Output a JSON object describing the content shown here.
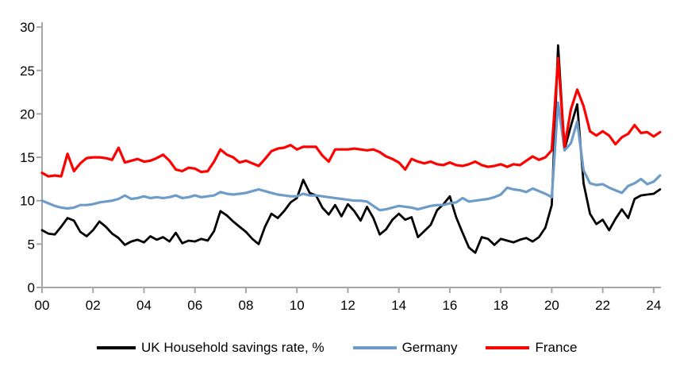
{
  "chart_data": {
    "type": "line",
    "title": "",
    "x_axis": {
      "start_year": 2000,
      "frequency": "quarterly",
      "last_point": "2024Q2"
    },
    "x_tick_labels": [
      "00",
      "02",
      "04",
      "06",
      "08",
      "10",
      "12",
      "14",
      "16",
      "18",
      "20",
      "22",
      "24"
    ],
    "y_ticks": [
      0,
      5,
      10,
      15,
      20,
      25,
      30
    ],
    "ylim": [
      0,
      30
    ],
    "grid": false,
    "legend_position": "bottom",
    "series": [
      {
        "name": "UK Household savings rate, %",
        "color": "#000000",
        "stroke_width": 2.8,
        "values": [
          6.6,
          6.2,
          6.1,
          7.0,
          8.0,
          7.7,
          6.4,
          5.9,
          6.6,
          7.6,
          7.0,
          6.2,
          5.7,
          4.9,
          5.3,
          5.5,
          5.2,
          5.9,
          5.5,
          5.8,
          5.3,
          6.3,
          5.1,
          5.4,
          5.3,
          5.6,
          5.4,
          6.5,
          8.8,
          8.3,
          7.6,
          7.0,
          6.4,
          5.6,
          5.0,
          7.0,
          8.5,
          8.0,
          8.8,
          9.8,
          10.3,
          12.4,
          10.9,
          10.6,
          9.2,
          8.4,
          9.5,
          8.2,
          9.6,
          8.8,
          7.7,
          9.3,
          8.0,
          6.1,
          6.7,
          7.8,
          8.5,
          7.8,
          8.1,
          5.8,
          6.5,
          7.2,
          8.9,
          9.6,
          10.5,
          8.1,
          6.3,
          4.6,
          4.0,
          5.8,
          5.6,
          4.9,
          5.6,
          5.4,
          5.2,
          5.5,
          5.7,
          5.3,
          5.8,
          6.9,
          9.5,
          27.9,
          15.9,
          18.6,
          21.1,
          12.0,
          8.5,
          7.3,
          7.8,
          6.6,
          7.9,
          9.0,
          8.0,
          10.2,
          10.6,
          10.7,
          10.8,
          11.3
        ]
      },
      {
        "name": "Germany",
        "color": "#6E9CC9",
        "stroke_width": 3.2,
        "values": [
          10.0,
          9.7,
          9.4,
          9.2,
          9.1,
          9.2,
          9.5,
          9.5,
          9.6,
          9.8,
          9.9,
          10.0,
          10.2,
          10.6,
          10.2,
          10.3,
          10.5,
          10.3,
          10.4,
          10.3,
          10.4,
          10.6,
          10.3,
          10.4,
          10.6,
          10.4,
          10.5,
          10.6,
          11.0,
          10.8,
          10.7,
          10.8,
          10.9,
          11.1,
          11.3,
          11.1,
          10.9,
          10.7,
          10.6,
          10.5,
          10.5,
          10.8,
          10.6,
          10.6,
          10.5,
          10.4,
          10.3,
          10.2,
          10.1,
          10.0,
          10.0,
          9.9,
          9.4,
          8.9,
          9.0,
          9.2,
          9.4,
          9.3,
          9.2,
          9.0,
          9.2,
          9.4,
          9.5,
          9.5,
          9.7,
          9.8,
          10.3,
          9.9,
          10.0,
          10.1,
          10.2,
          10.4,
          10.7,
          11.5,
          11.3,
          11.2,
          11.0,
          11.4,
          11.1,
          10.8,
          10.4,
          21.3,
          15.8,
          16.6,
          19.1,
          13.5,
          12.0,
          11.8,
          11.9,
          11.5,
          11.2,
          10.9,
          11.7,
          12.0,
          12.5,
          11.9,
          12.2,
          12.9
        ]
      },
      {
        "name": "France",
        "color": "#FE0000",
        "stroke_width": 3.2,
        "values": [
          13.2,
          12.8,
          12.9,
          12.8,
          15.4,
          13.4,
          14.3,
          14.9,
          15.0,
          15.0,
          14.9,
          14.7,
          16.1,
          14.4,
          14.6,
          14.8,
          14.5,
          14.6,
          14.9,
          15.3,
          14.6,
          13.6,
          13.4,
          13.8,
          13.7,
          13.3,
          13.4,
          14.5,
          15.9,
          15.3,
          15.0,
          14.4,
          14.6,
          14.3,
          14.0,
          14.8,
          15.7,
          16.0,
          16.1,
          16.4,
          15.9,
          16.2,
          16.2,
          16.2,
          15.2,
          14.5,
          15.9,
          15.9,
          15.9,
          16.0,
          15.9,
          15.8,
          15.9,
          15.6,
          15.1,
          14.8,
          14.4,
          13.6,
          14.8,
          14.5,
          14.3,
          14.5,
          14.2,
          14.1,
          14.4,
          14.1,
          14.0,
          14.2,
          14.5,
          14.1,
          13.9,
          14.0,
          14.2,
          13.9,
          14.2,
          14.1,
          14.6,
          15.1,
          14.7,
          15.0,
          15.8,
          26.4,
          16.2,
          20.5,
          22.8,
          20.9,
          18.0,
          17.5,
          18.0,
          17.5,
          16.5,
          17.3,
          17.7,
          18.7,
          17.8,
          17.9,
          17.4,
          17.9
        ]
      }
    ]
  },
  "colors": {
    "axis": "#A6A6A6",
    "tick_text": "#000000",
    "uk_line": "#000000",
    "germany_line": "#6E9CC9",
    "france_line": "#FE0000",
    "background": "#FFFFFF"
  }
}
